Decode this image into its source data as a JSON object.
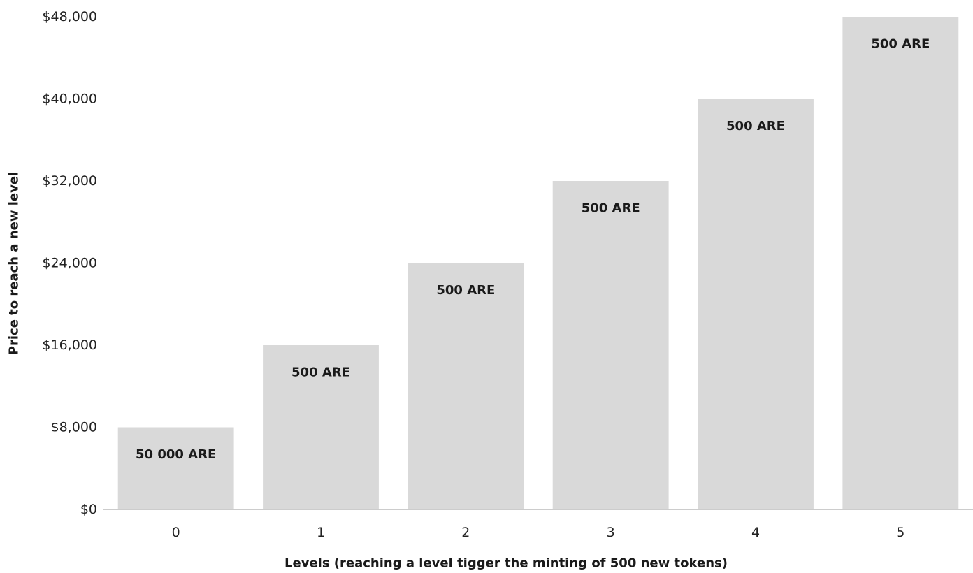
{
  "chart_data": {
    "type": "bar",
    "categories": [
      "0",
      "1",
      "2",
      "3",
      "4",
      "5"
    ],
    "values": [
      8000,
      16000,
      24000,
      32000,
      40000,
      48000
    ],
    "data_labels": [
      "50 000 ARE",
      "500 ARE",
      "500 ARE",
      "500 ARE",
      "500 ARE",
      "500 ARE"
    ],
    "xlabel": "Levels (reaching a level tigger the minting of 500 new tokens)",
    "ylabel": "Price to reach a new level",
    "ylim": [
      0,
      48000
    ],
    "yticks": [
      0,
      8000,
      16000,
      24000,
      32000,
      40000,
      48000
    ],
    "ytick_labels": [
      "$0",
      "$8,000",
      "$16,000",
      "$24,000",
      "$32,000",
      "$40,000",
      "$48,000"
    ],
    "grid": false,
    "colors": {
      "bar": "#d9d9d9",
      "text": "#1a1a1a",
      "axis": "#cccccc"
    }
  }
}
